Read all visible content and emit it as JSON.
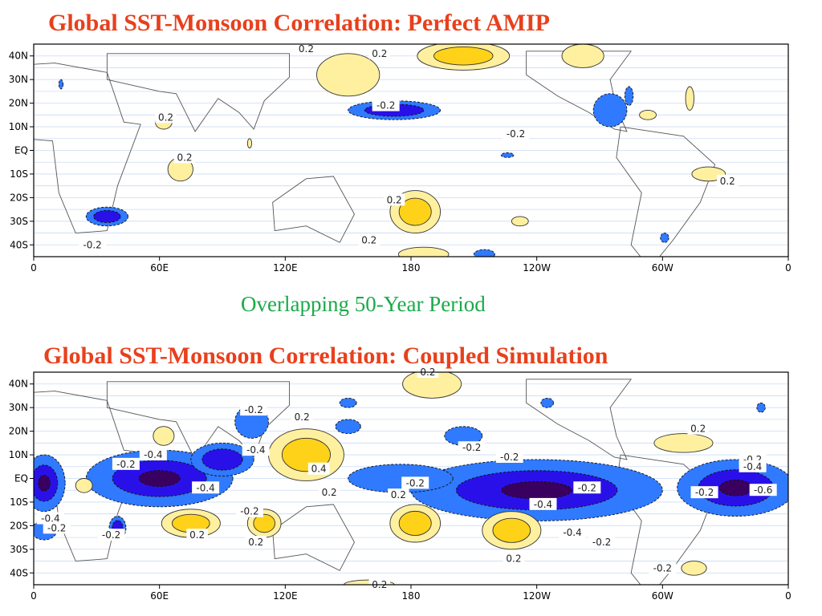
{
  "page": {
    "title_top": "Global SST-Monsoon Correlation: Perfect AMIP",
    "subtitle": "Overlapping 50-Year Period",
    "title_bottom": "Global SST-Monsoon Correlation: Coupled Simulation"
  },
  "colors": {
    "title": "#e8401c",
    "subtitle": "#1aaa4a",
    "pos_02": "#fff0a0",
    "pos_04": "#ffd21a",
    "neg_02": "#2f7aff",
    "neg_04": "#2a10e8",
    "neg_06": "#3a0060"
  },
  "chart_data": [
    {
      "type": "heatmap",
      "title": "Global SST-Monsoon Correlation: Perfect AMIP",
      "x_ticks": [
        "0",
        "60E",
        "120E",
        "180",
        "120W",
        "60W",
        "0"
      ],
      "y_ticks": [
        "40N",
        "30N",
        "20N",
        "10N",
        "EQ",
        "10S",
        "20S",
        "30S",
        "40S"
      ],
      "xlim": [
        0,
        360
      ],
      "ylim": [
        -45,
        45
      ],
      "contour_levels": [
        -0.6,
        -0.4,
        -0.2,
        0.2,
        0.4
      ],
      "regions": [
        {
          "lon": 205,
          "lat": 40,
          "rlon": 22,
          "rlat": 6,
          "value": 0.4
        },
        {
          "lon": 150,
          "lat": 32,
          "rlon": 15,
          "rlat": 9,
          "value": 0.2
        },
        {
          "lon": 262,
          "lat": 40,
          "rlon": 10,
          "rlat": 5,
          "value": 0.2
        },
        {
          "lon": 172,
          "lat": 17,
          "rlon": 22,
          "rlat": 4,
          "value": -0.4
        },
        {
          "lon": 275,
          "lat": 17,
          "rlon": 8,
          "rlat": 7,
          "value": -0.2
        },
        {
          "lon": 284,
          "lat": 23,
          "rlon": 2,
          "rlat": 4,
          "value": -0.2
        },
        {
          "lon": 13,
          "lat": 28,
          "rlon": 1,
          "rlat": 2,
          "value": -0.2
        },
        {
          "lon": 313,
          "lat": 22,
          "rlon": 2,
          "rlat": 5,
          "value": 0.2
        },
        {
          "lon": 293,
          "lat": 15,
          "rlon": 4,
          "rlat": 2,
          "value": 0.2
        },
        {
          "lon": 62,
          "lat": 12,
          "rlon": 4,
          "rlat": 3,
          "value": 0.2
        },
        {
          "lon": 70,
          "lat": -8,
          "rlon": 6,
          "rlat": 5,
          "value": 0.2
        },
        {
          "lon": 35,
          "lat": -28,
          "rlon": 10,
          "rlat": 4,
          "value": -0.4
        },
        {
          "lon": 182,
          "lat": -26,
          "rlon": 12,
          "rlat": 9,
          "value": 0.4
        },
        {
          "lon": 322,
          "lat": -10,
          "rlon": 8,
          "rlat": 3,
          "value": 0.2
        },
        {
          "lon": 186,
          "lat": -44,
          "rlon": 12,
          "rlat": 3,
          "value": 0.2
        },
        {
          "lon": 232,
          "lat": -30,
          "rlon": 4,
          "rlat": 2,
          "value": 0.2
        },
        {
          "lon": 301,
          "lat": -37,
          "rlon": 2,
          "rlat": 2,
          "value": -0.2
        },
        {
          "lon": 215,
          "lat": -44,
          "rlon": 5,
          "rlat": 2,
          "value": -0.2
        },
        {
          "lon": 103,
          "lat": 3,
          "rlon": 1,
          "rlat": 2,
          "value": 0.2
        },
        {
          "lon": 226,
          "lat": -2,
          "rlon": 3,
          "rlat": 1,
          "value": -0.2
        }
      ],
      "labels": [
        {
          "text": "0.2",
          "lon": 130,
          "lat": 43
        },
        {
          "text": "0.2",
          "lon": 165,
          "lat": 41
        },
        {
          "text": "-0.2",
          "lon": 168,
          "lat": 19
        },
        {
          "text": "0.2",
          "lon": 63,
          "lat": 14
        },
        {
          "text": "-0.2",
          "lon": 230,
          "lat": 7
        },
        {
          "text": "0.2",
          "lon": 72,
          "lat": -3
        },
        {
          "text": "0.2",
          "lon": 172,
          "lat": -21
        },
        {
          "text": "0.2",
          "lon": 331,
          "lat": -13
        },
        {
          "text": "-0.2",
          "lon": 28,
          "lat": -40
        },
        {
          "text": "0.2",
          "lon": 160,
          "lat": -38
        }
      ]
    },
    {
      "type": "heatmap",
      "title": "Global SST-Monsoon Correlation: Coupled Simulation",
      "x_ticks": [
        "0",
        "60E",
        "120E",
        "180",
        "120W",
        "60W",
        "0"
      ],
      "y_ticks": [
        "40N",
        "30N",
        "20N",
        "10N",
        "EQ",
        "10S",
        "20S",
        "30S",
        "40S"
      ],
      "xlim": [
        0,
        360
      ],
      "ylim": [
        -45,
        45
      ],
      "contour_levels": [
        -0.6,
        -0.4,
        -0.2,
        0.2,
        0.4
      ],
      "regions": [
        {
          "lon": 190,
          "lat": 40,
          "rlon": 14,
          "rlat": 6,
          "value": 0.2
        },
        {
          "lon": 104,
          "lat": 24,
          "rlon": 8,
          "rlat": 7,
          "value": -0.2
        },
        {
          "lon": 150,
          "lat": 22,
          "rlon": 6,
          "rlat": 3,
          "value": -0.2
        },
        {
          "lon": 130,
          "lat": 10,
          "rlon": 18,
          "rlat": 11,
          "value": 0.4
        },
        {
          "lon": 62,
          "lat": 18,
          "rlon": 5,
          "rlat": 4,
          "value": 0.2
        },
        {
          "lon": 205,
          "lat": 18,
          "rlon": 9,
          "rlat": 4,
          "value": -0.2
        },
        {
          "lon": 5,
          "lat": -2,
          "rlon": 10,
          "rlat": 12,
          "value": -0.6
        },
        {
          "lon": 60,
          "lat": 0,
          "rlon": 35,
          "rlat": 12,
          "value": -0.6
        },
        {
          "lon": 90,
          "lat": 8,
          "rlon": 15,
          "rlat": 7,
          "value": -0.4
        },
        {
          "lon": 240,
          "lat": -5,
          "rlon": 60,
          "rlat": 13,
          "value": -0.6
        },
        {
          "lon": 175,
          "lat": 0,
          "rlon": 25,
          "rlat": 6,
          "value": -0.2
        },
        {
          "lon": 335,
          "lat": -4,
          "rlon": 28,
          "rlat": 12,
          "value": -0.6
        },
        {
          "lon": 310,
          "lat": 15,
          "rlon": 14,
          "rlat": 4,
          "value": 0.2
        },
        {
          "lon": 24,
          "lat": -3,
          "rlon": 4,
          "rlat": 3,
          "value": 0.2
        },
        {
          "lon": 75,
          "lat": -19,
          "rlon": 14,
          "rlat": 6,
          "value": 0.4
        },
        {
          "lon": 110,
          "lat": -19,
          "rlon": 8,
          "rlat": 6,
          "value": 0.4
        },
        {
          "lon": 182,
          "lat": -19,
          "rlon": 12,
          "rlat": 8,
          "value": 0.4
        },
        {
          "lon": 228,
          "lat": -22,
          "rlon": 14,
          "rlat": 8,
          "value": 0.4
        },
        {
          "lon": 40,
          "lat": -21,
          "rlon": 4,
          "rlat": 5,
          "value": -0.4
        },
        {
          "lon": 5,
          "lat": -22,
          "rlon": 6,
          "rlat": 4,
          "value": -0.2
        },
        {
          "lon": 315,
          "lat": -38,
          "rlon": 6,
          "rlat": 3,
          "value": 0.2
        },
        {
          "lon": 160,
          "lat": -45,
          "rlon": 12,
          "rlat": 2,
          "value": 0.2
        },
        {
          "lon": 150,
          "lat": 32,
          "rlon": 4,
          "rlat": 2,
          "value": -0.2
        },
        {
          "lon": 245,
          "lat": 32,
          "rlon": 3,
          "rlat": 2,
          "value": -0.2
        },
        {
          "lon": 347,
          "lat": 30,
          "rlon": 2,
          "rlat": 2,
          "value": -0.2
        }
      ],
      "labels": [
        {
          "text": "0.2",
          "lon": 188,
          "lat": 45
        },
        {
          "text": "-0.2",
          "lon": 105,
          "lat": 29
        },
        {
          "text": "0.2",
          "lon": 128,
          "lat": 26
        },
        {
          "text": "-0.4",
          "lon": 57,
          "lat": 10
        },
        {
          "text": "-0.4",
          "lon": 106,
          "lat": 12
        },
        {
          "text": "-0.2",
          "lon": 44,
          "lat": 6
        },
        {
          "text": "0.4",
          "lon": 136,
          "lat": 4
        },
        {
          "text": "-0.4",
          "lon": 82,
          "lat": -4
        },
        {
          "text": "0.2",
          "lon": 141,
          "lat": -6
        },
        {
          "text": "-0.2",
          "lon": 182,
          "lat": -2
        },
        {
          "text": "0.2",
          "lon": 174,
          "lat": -7
        },
        {
          "text": "-0.2",
          "lon": 103,
          "lat": -14
        },
        {
          "text": "0.2",
          "lon": 78,
          "lat": -24
        },
        {
          "text": "0.2",
          "lon": 106,
          "lat": -27
        },
        {
          "text": "-0.4",
          "lon": 8,
          "lat": -17
        },
        {
          "text": "-0.2",
          "lon": 11,
          "lat": -21
        },
        {
          "text": "-0.2",
          "lon": 37,
          "lat": -24
        },
        {
          "text": "-0.2",
          "lon": 209,
          "lat": 13
        },
        {
          "text": "-0.2",
          "lon": 227,
          "lat": 9
        },
        {
          "text": "-0.2",
          "lon": 264,
          "lat": -4
        },
        {
          "text": "-0.4",
          "lon": 243,
          "lat": -11
        },
        {
          "text": "-0.4",
          "lon": 257,
          "lat": -23
        },
        {
          "text": "-0.2",
          "lon": 271,
          "lat": -27
        },
        {
          "text": "0.2",
          "lon": 229,
          "lat": -34
        },
        {
          "text": "-0.2",
          "lon": 320,
          "lat": -6
        },
        {
          "text": "-0.2",
          "lon": 343,
          "lat": 8
        },
        {
          "text": "-0.4",
          "lon": 343,
          "lat": 5
        },
        {
          "text": "-0.6",
          "lon": 348,
          "lat": -5
        },
        {
          "text": "0.2",
          "lon": 317,
          "lat": 21
        },
        {
          "text": "-0.2",
          "lon": 300,
          "lat": -38
        },
        {
          "text": "0.2",
          "lon": 165,
          "lat": -45
        }
      ]
    }
  ]
}
